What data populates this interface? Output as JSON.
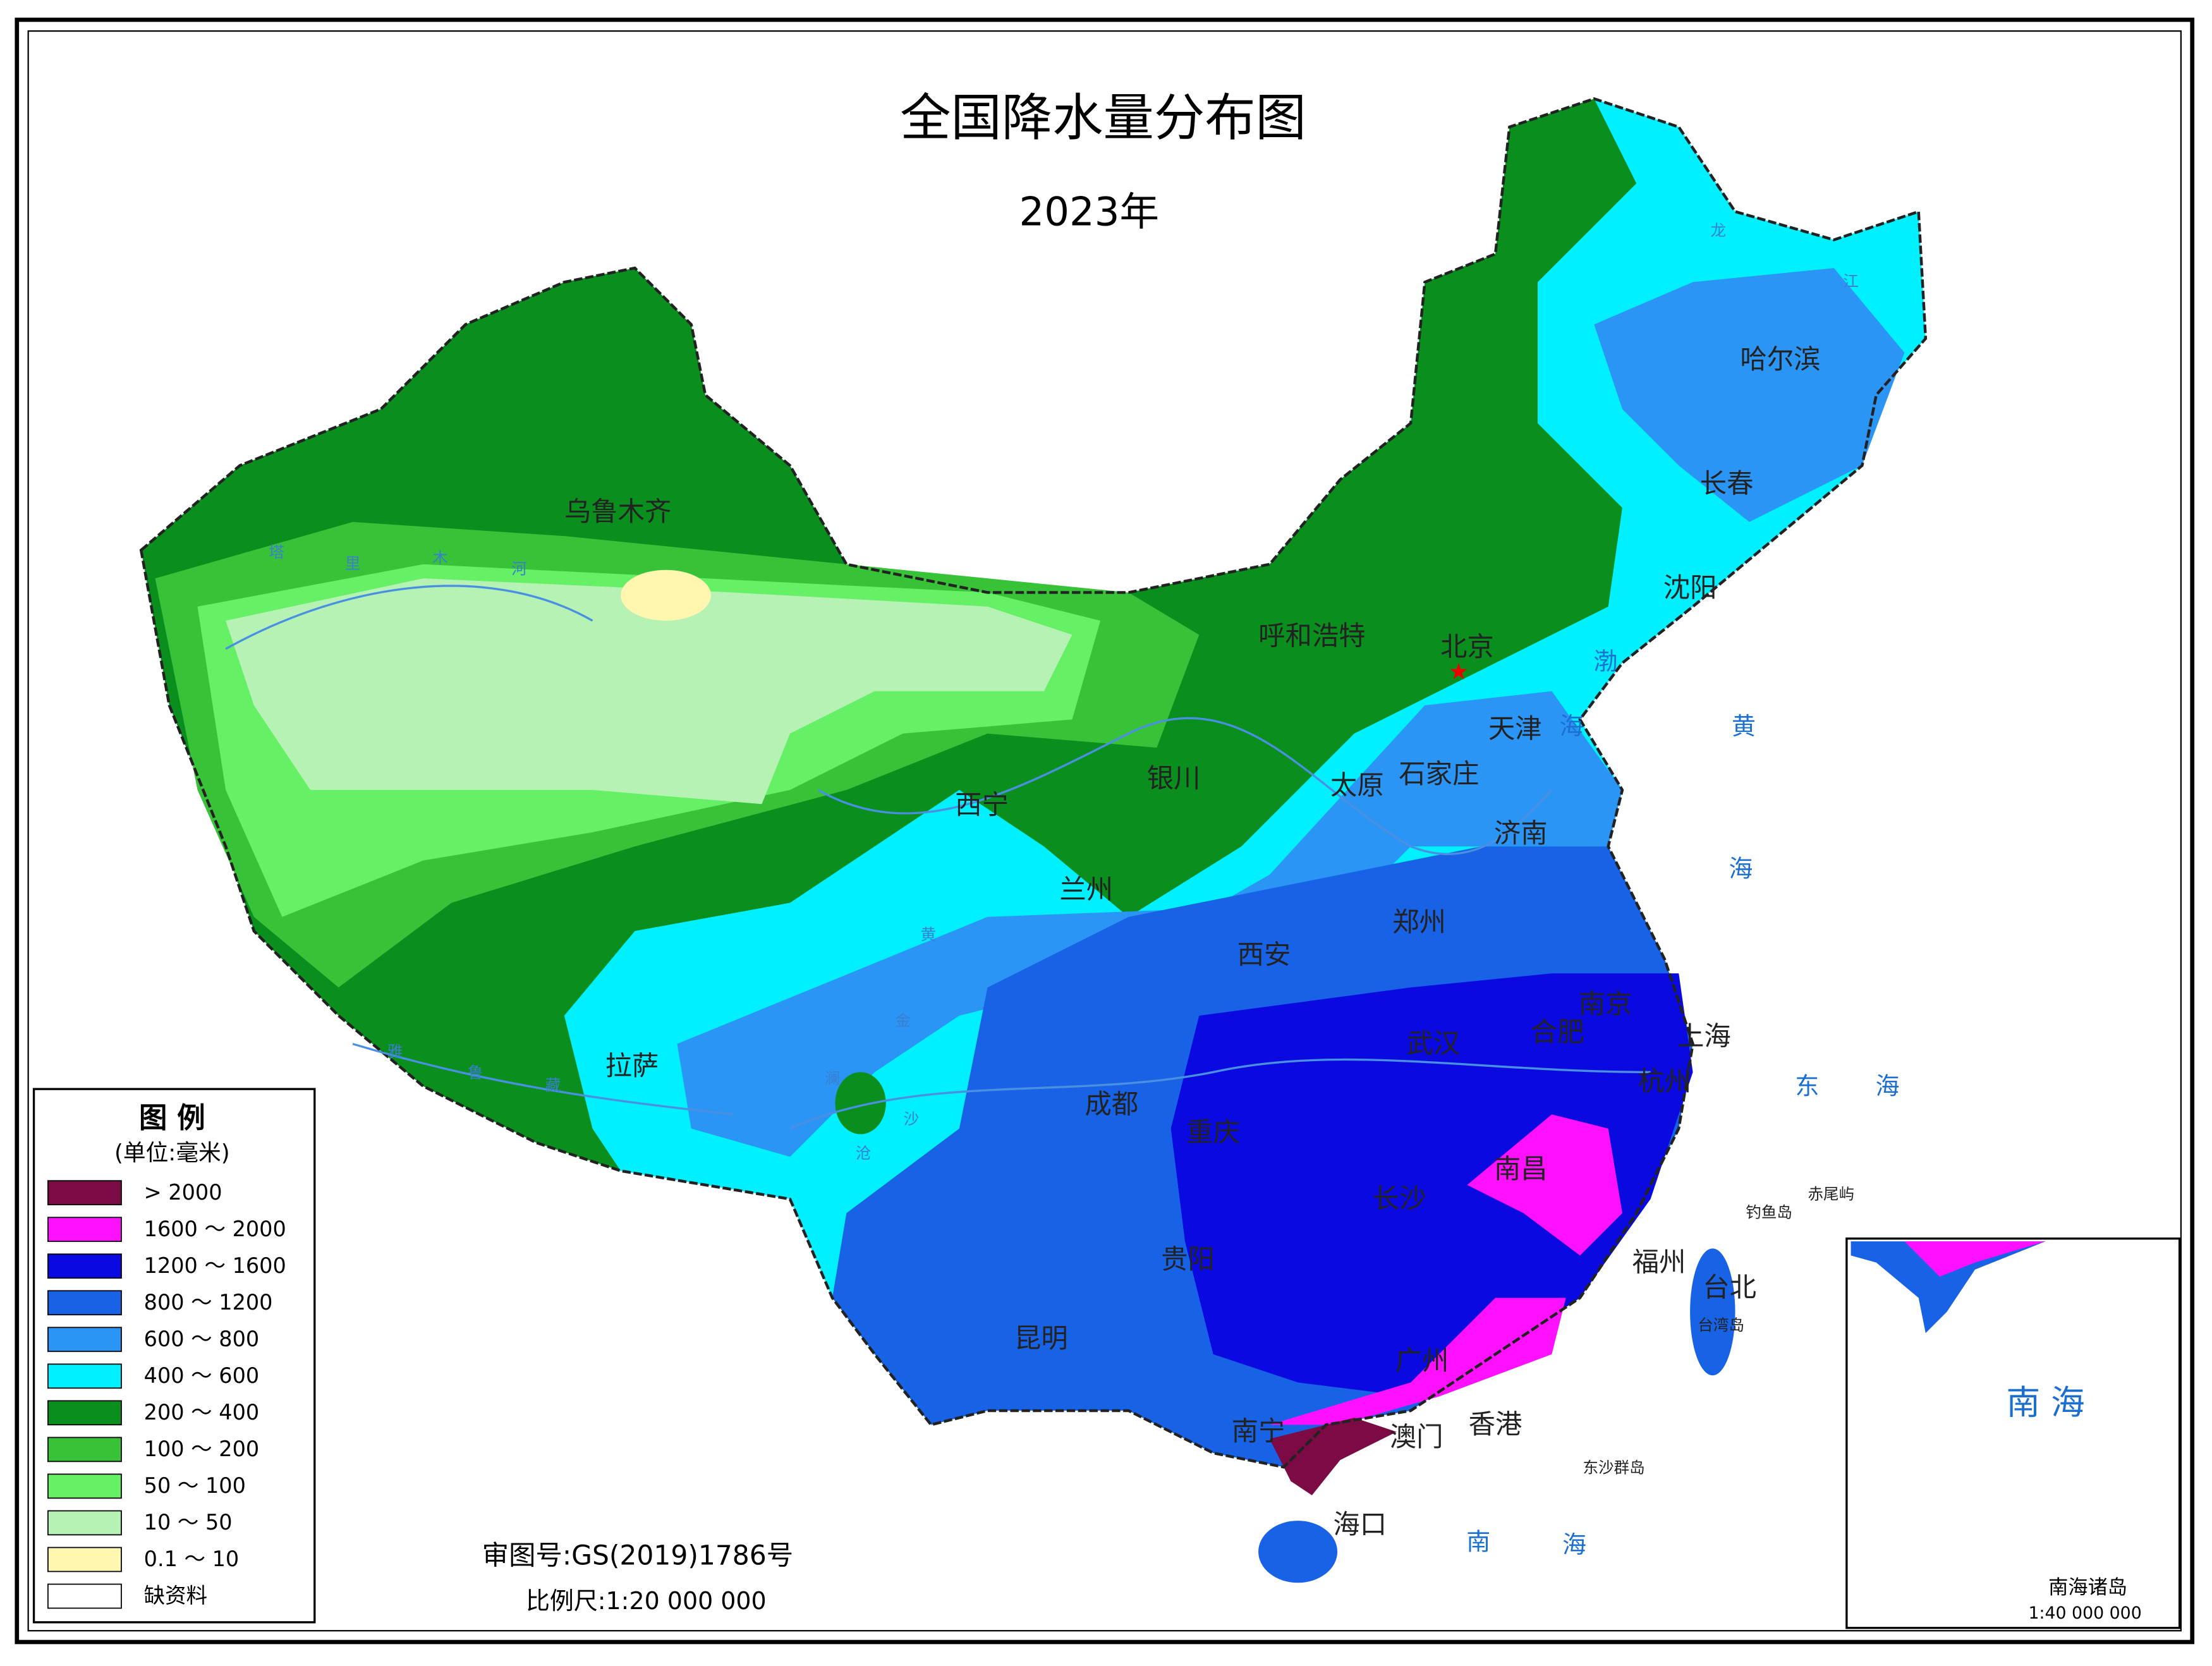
{
  "title": "全国降水量分布图",
  "subtitle": "2023年",
  "legend": {
    "title": "图 例",
    "unit": "(单位:毫米)",
    "items": [
      {
        "label": "> 2000",
        "color": "#7b0a45"
      },
      {
        "label": "1600 ～ 2000",
        "color": "#ff10ff"
      },
      {
        "label": "1200 ～ 1600",
        "color": "#0a0ae0"
      },
      {
        "label": "800 ～ 1200",
        "color": "#1862e6"
      },
      {
        "label": "600 ～ 800",
        "color": "#2b95f5"
      },
      {
        "label": "400 ～ 600",
        "color": "#00f0ff"
      },
      {
        "label": "200 ～ 400",
        "color": "#0a8f1e"
      },
      {
        "label": "100 ～ 200",
        "color": "#38c238"
      },
      {
        "label": "50 ～ 100",
        "color": "#66f066"
      },
      {
        "label": "10 ～ 50",
        "color": "#b6f2b4"
      },
      {
        "label": "0.1 ～ 10",
        "color": "#fff7b0"
      },
      {
        "label": "缺资料",
        "color": "#ffffff"
      }
    ]
  },
  "cities": [
    "乌鲁木齐",
    "呼和浩特",
    "北京",
    "天津",
    "石家庄",
    "太原",
    "银川",
    "西宁",
    "兰州",
    "济南",
    "郑州",
    "西安",
    "哈尔滨",
    "长春",
    "沈阳",
    "南京",
    "合肥",
    "上海",
    "杭州",
    "武汉",
    "成都",
    "重庆",
    "拉萨",
    "南昌",
    "长沙",
    "贵阳",
    "昆明",
    "福州",
    "台北",
    "广州",
    "南宁",
    "澳门",
    "香港",
    "海口"
  ],
  "seas": [
    "渤",
    "海",
    "黄",
    "海",
    "东",
    "海",
    "南",
    "海"
  ],
  "rivers": [
    "塔",
    "里",
    "木",
    "河",
    "龙",
    "江",
    "雅",
    "鲁",
    "藏",
    "黄",
    "金",
    "澜",
    "沙",
    "沧"
  ],
  "islands": [
    "钓鱼岛",
    "赤尾屿",
    "东沙群岛",
    "台湾岛"
  ],
  "approval": "审图号:GS(2019)1786号",
  "scale": "比例尺:1:20 000 000",
  "inset": {
    "sea": "南 海",
    "name": "南海诸岛",
    "scale": "1:40 000 000"
  }
}
